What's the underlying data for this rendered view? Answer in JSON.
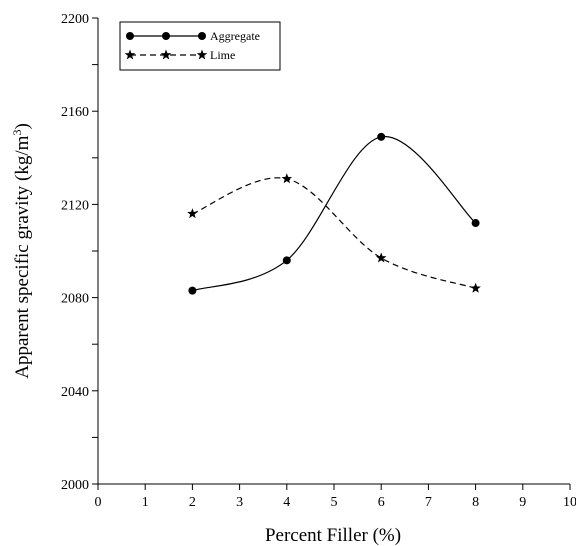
{
  "chart_data": {
    "type": "line",
    "xlabel": "Percent Filler (%)",
    "ylabel_main": "Apparent specific gravity (kg/m",
    "ylabel_sup": "3",
    "ylabel_close": ")",
    "xlim": [
      0,
      10
    ],
    "ylim": [
      2000,
      2200
    ],
    "xticks": [
      0,
      1,
      2,
      3,
      4,
      5,
      6,
      7,
      8,
      9,
      10
    ],
    "yticks": [
      2000,
      2040,
      2080,
      2120,
      2160,
      2200
    ],
    "grid": false,
    "legend_position": "top-left",
    "series": [
      {
        "name": "Aggregate",
        "marker": "circle",
        "line_style": "solid",
        "color": "#000000",
        "x": [
          2,
          4,
          6,
          8
        ],
        "y": [
          2083,
          2096,
          2149,
          2112
        ]
      },
      {
        "name": "Lime",
        "marker": "star",
        "line_style": "dashed",
        "color": "#000000",
        "x": [
          2,
          4,
          6,
          8
        ],
        "y": [
          2116,
          2131,
          2097,
          2084
        ]
      }
    ]
  }
}
